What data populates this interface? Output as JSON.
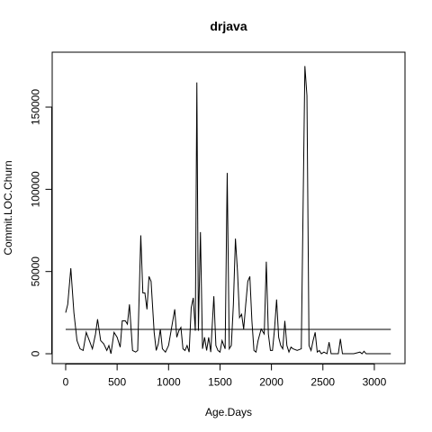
{
  "chart_data": {
    "type": "line",
    "title": "drjava",
    "x_label": "Age.Days",
    "y_label": "Commit.LOC.Churn",
    "x": [
      0,
      20,
      50,
      80,
      110,
      140,
      170,
      200,
      230,
      260,
      290,
      310,
      340,
      370,
      400,
      420,
      440,
      470,
      500,
      530,
      550,
      580,
      600,
      620,
      650,
      680,
      700,
      730,
      750,
      770,
      790,
      810,
      830,
      860,
      880,
      900,
      920,
      940,
      970,
      1000,
      1030,
      1060,
      1080,
      1100,
      1120,
      1140,
      1160,
      1180,
      1200,
      1220,
      1240,
      1260,
      1275,
      1290,
      1310,
      1330,
      1350,
      1370,
      1390,
      1410,
      1440,
      1460,
      1480,
      1500,
      1520,
      1550,
      1570,
      1590,
      1610,
      1630,
      1650,
      1670,
      1690,
      1710,
      1730,
      1750,
      1770,
      1790,
      1810,
      1830,
      1850,
      1870,
      1900,
      1930,
      1950,
      1970,
      1990,
      2010,
      2030,
      2050,
      2070,
      2090,
      2110,
      2130,
      2150,
      2170,
      2190,
      2210,
      2250,
      2290,
      2325,
      2345,
      2365,
      2385,
      2405,
      2425,
      2445,
      2465,
      2485,
      2510,
      2540,
      2560,
      2580,
      2620,
      2650,
      2670,
      2690,
      2750,
      2800,
      2830,
      2860,
      2880,
      2900,
      2920,
      3000,
      3160
    ],
    "values": [
      25000,
      30000,
      52000,
      25000,
      8000,
      3000,
      2000,
      13000,
      8000,
      3000,
      12000,
      21000,
      8000,
      6000,
      2000,
      5000,
      0,
      13000,
      10000,
      4000,
      20000,
      20000,
      18000,
      30000,
      2000,
      1000,
      2000,
      72000,
      37000,
      37000,
      27000,
      47000,
      44000,
      13000,
      2000,
      6000,
      15000,
      3000,
      1000,
      5000,
      16000,
      27000,
      10000,
      14000,
      16000,
      3000,
      2000,
      5000,
      1000,
      28000,
      34000,
      14000,
      165000,
      14000,
      74000,
      3000,
      10000,
      2000,
      10000,
      1000,
      35000,
      5000,
      2000,
      1000,
      8000,
      3000,
      110000,
      3000,
      5000,
      30000,
      70000,
      50000,
      22000,
      24000,
      15000,
      30000,
      44000,
      47000,
      20000,
      2000,
      1000,
      8000,
      15000,
      12000,
      56000,
      12000,
      2000,
      2000,
      15000,
      33000,
      10000,
      5000,
      3000,
      20000,
      5000,
      1000,
      4000,
      3000,
      2000,
      3000,
      175000,
      157000,
      5000,
      2000,
      8000,
      13000,
      1000,
      2000,
      0,
      1000,
      0,
      7000,
      0,
      0,
      0,
      9000,
      0,
      0,
      0,
      500,
      1000,
      0,
      1500,
      0,
      0,
      0
    ],
    "hline": 14800,
    "xlim": [
      -131,
      3298
    ],
    "ylim": [
      -6000,
      183400
    ],
    "xticks": [
      0,
      500,
      1000,
      1500,
      2000,
      2500,
      3000
    ],
    "yticks": [
      0,
      50000,
      100000,
      150000
    ],
    "color": "#000000"
  }
}
